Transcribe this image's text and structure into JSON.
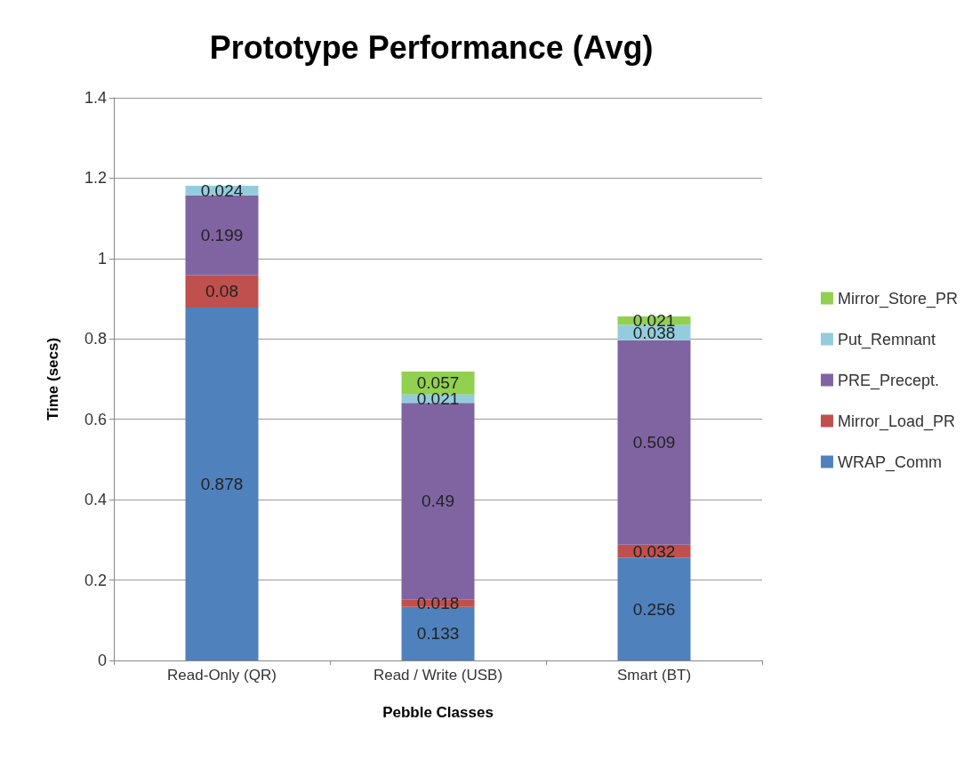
{
  "chart_data": {
    "type": "bar",
    "title": "Prototype Performance (Avg)",
    "xlabel": "Pebble Classes",
    "ylabel": "Time (secs)",
    "categories": [
      "Read-Only (QR)",
      "Read / Write (USB)",
      "Smart (BT)"
    ],
    "stacked": true,
    "series": [
      {
        "name": "WRAP_Comm",
        "color": "#4f81bd",
        "values": [
          0.878,
          0.133,
          0.256
        ]
      },
      {
        "name": "Mirror_Load_PR",
        "color": "#c0504d",
        "values": [
          0.08,
          0.018,
          0.032
        ]
      },
      {
        "name": "PRE_Precept.",
        "color": "#8064a2",
        "values": [
          0.199,
          0.49,
          0.509
        ]
      },
      {
        "name": "Put_Remnant",
        "color": "#93cddd",
        "values": [
          0.024,
          0.021,
          0.038
        ]
      },
      {
        "name": "Mirror_Store_PR",
        "color": "#92d050",
        "values": [
          null,
          0.057,
          0.021
        ]
      }
    ],
    "ylim": [
      0,
      1.4
    ],
    "yticks": [
      0,
      0.2,
      0.4,
      0.6,
      0.8,
      1,
      1.2,
      1.4
    ],
    "grid": "y",
    "legend": "right",
    "data_labels": true
  }
}
